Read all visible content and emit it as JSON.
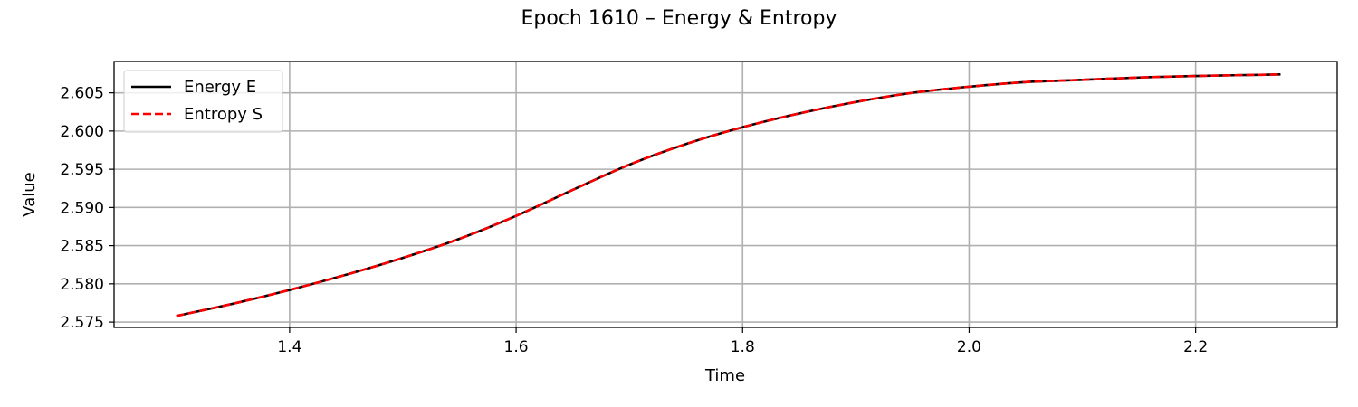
{
  "chart_data": {
    "type": "line",
    "title": "Epoch 1610 – Energy & Entropy",
    "xlabel": "Time",
    "ylabel": "Value",
    "xlim": [
      1.245,
      2.325
    ],
    "ylim": [
      2.5743,
      2.6091
    ],
    "xticks": [
      1.4,
      1.6,
      1.8,
      2.0,
      2.2
    ],
    "xtick_labels": [
      "1.4",
      "1.6",
      "1.8",
      "2.0",
      "2.2"
    ],
    "yticks": [
      2.575,
      2.58,
      2.585,
      2.59,
      2.595,
      2.6,
      2.605
    ],
    "ytick_labels": [
      "2.575",
      "2.580",
      "2.585",
      "2.590",
      "2.595",
      "2.600",
      "2.605"
    ],
    "grid": true,
    "legend_position": "top-left",
    "x": [
      1.3,
      1.35,
      1.4,
      1.45,
      1.5,
      1.55,
      1.6,
      1.65,
      1.7,
      1.75,
      1.8,
      1.85,
      1.9,
      1.95,
      2.0,
      2.05,
      2.1,
      2.15,
      2.2,
      2.275
    ],
    "series": [
      {
        "name": "Energy E",
        "color": "#000000",
        "style": "solid",
        "values": [
          2.5758,
          2.5774,
          2.5792,
          2.5812,
          2.5834,
          2.5859,
          2.5889,
          2.5923,
          2.5956,
          2.5983,
          2.6005,
          2.6023,
          2.6038,
          2.605,
          2.6058,
          2.6064,
          2.6067,
          2.607,
          2.6072,
          2.6074
        ]
      },
      {
        "name": "Entropy S",
        "color": "#ff0000",
        "style": "dashed",
        "values": [
          2.5758,
          2.5774,
          2.5792,
          2.5812,
          2.5834,
          2.5859,
          2.5889,
          2.5923,
          2.5956,
          2.5983,
          2.6005,
          2.6023,
          2.6038,
          2.605,
          2.6058,
          2.6064,
          2.6067,
          2.607,
          2.6072,
          2.6074
        ]
      }
    ]
  }
}
